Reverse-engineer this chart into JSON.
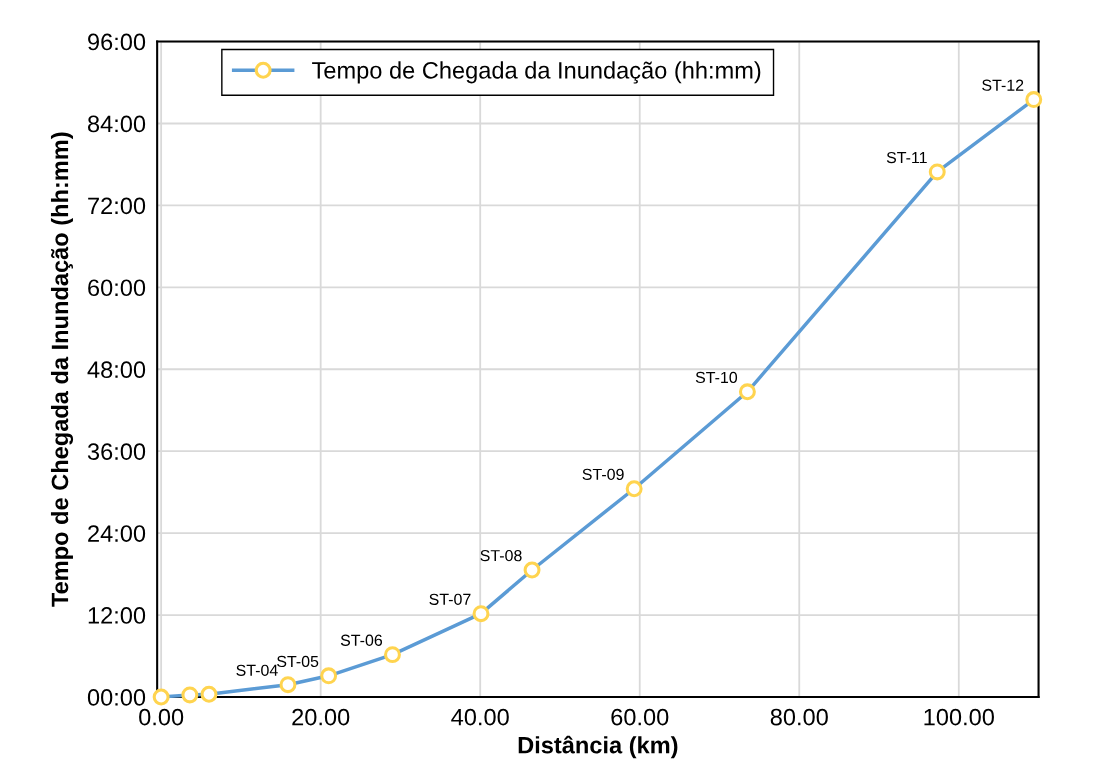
{
  "chart_data": {
    "type": "line",
    "xlabel": "Distância (km)",
    "ylabel": "Tempo de Chegada da Inundação (hh:mm)",
    "x": [
      0.0,
      3.6,
      6.0,
      15.9,
      21.0,
      29.0,
      40.1,
      46.5,
      59.3,
      73.5,
      97.3,
      109.4
    ],
    "series": [
      {
        "name": "Tempo de Chegada da Inundação (hh:mm)",
        "color": "#5b9bd5",
        "values": [
          0.0,
          0.3,
          0.4,
          1.8,
          3.1,
          6.2,
          12.2,
          18.6,
          30.5,
          44.7,
          76.9,
          87.5
        ]
      }
    ],
    "annotations": [
      {
        "text": "ST-04",
        "x": 15.9,
        "y": 1.8
      },
      {
        "text": "ST-05",
        "x": 21.0,
        "y": 3.1
      },
      {
        "text": "ST-06",
        "x": 29.0,
        "y": 6.2
      },
      {
        "text": "ST-07",
        "x": 40.1,
        "y": 12.2
      },
      {
        "text": "ST-08",
        "x": 46.5,
        "y": 18.6
      },
      {
        "text": "ST-09",
        "x": 59.3,
        "y": 30.5
      },
      {
        "text": "ST-10",
        "x": 73.5,
        "y": 44.7
      },
      {
        "text": "ST-11",
        "x": 97.3,
        "y": 76.9
      },
      {
        "text": "ST-12",
        "x": 109.4,
        "y": 87.5
      }
    ],
    "xlim": [
      -0.5,
      110
    ],
    "ylim": [
      0,
      96
    ],
    "xticks": [
      {
        "value": 0,
        "label": "0.00"
      },
      {
        "value": 20,
        "label": "20.00"
      },
      {
        "value": 40,
        "label": "40.00"
      },
      {
        "value": 60,
        "label": "60.00"
      },
      {
        "value": 80,
        "label": "80.00"
      },
      {
        "value": 100,
        "label": "100.00"
      }
    ],
    "yticks": [
      {
        "value": 0,
        "label": "00:00"
      },
      {
        "value": 12,
        "label": "12:00"
      },
      {
        "value": 24,
        "label": "24:00"
      },
      {
        "value": 36,
        "label": "36:00"
      },
      {
        "value": 48,
        "label": "48:00"
      },
      {
        "value": 60,
        "label": "60:00"
      },
      {
        "value": 72,
        "label": "72:00"
      },
      {
        "value": 84,
        "label": "84:00"
      },
      {
        "value": 96,
        "label": "96:00"
      }
    ],
    "grid": true,
    "legend": "top",
    "marker": "circle",
    "line_style": "solid"
  }
}
